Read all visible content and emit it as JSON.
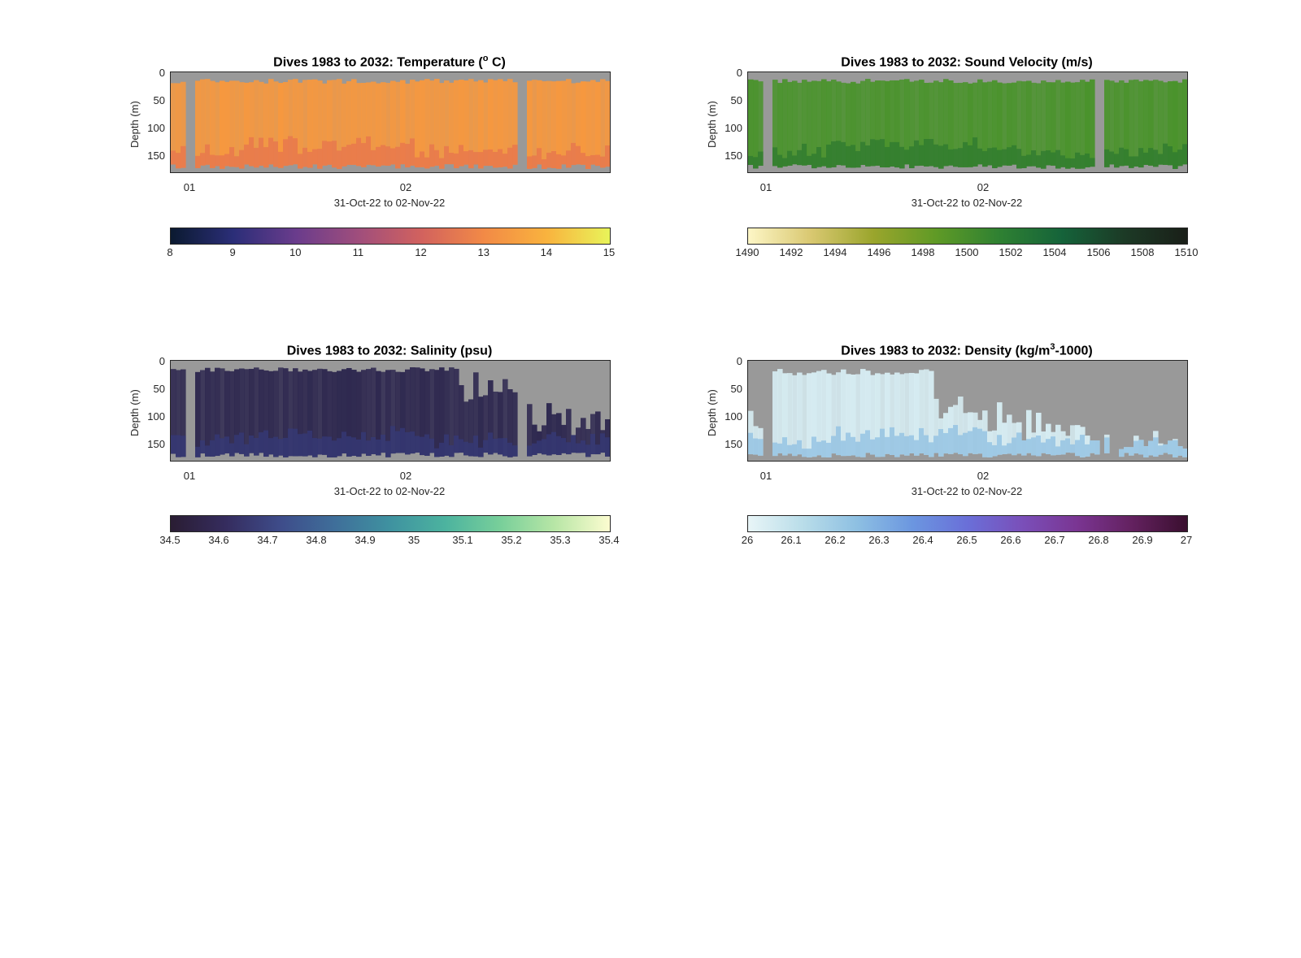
{
  "panels": [
    {
      "title_prefix": "Dives 1983 to 2032: Temperature (",
      "title_sup": "o",
      "title_suffix": " C)",
      "ylabel": "Depth (m)",
      "xlabel": "31-Oct-22 to 02-Nov-22",
      "yticks": [
        "0",
        "50",
        "100",
        "150"
      ],
      "xticks": [
        "01",
        "02"
      ],
      "cbar_ticks": [
        "8",
        "9",
        "10",
        "11",
        "12",
        "13",
        "14",
        "15"
      ],
      "colormap": [
        "#0b1a30",
        "#2b2e78",
        "#6a3c8c",
        "#a04e7c",
        "#d2625e",
        "#f28a46",
        "#f9b33e",
        "#e8f45a"
      ],
      "fill": "#f6983f",
      "deep_fill": "#e7744e"
    },
    {
      "title_prefix": "Dives 1983 to 2032: Sound Velocity (m/s)",
      "title_sup": "",
      "title_suffix": "",
      "ylabel": "Depth (m)",
      "xlabel": "31-Oct-22 to 02-Nov-22",
      "yticks": [
        "0",
        "50",
        "100",
        "150"
      ],
      "xticks": [
        "01",
        "02"
      ],
      "cbar_ticks": [
        "1490",
        "1492",
        "1494",
        "1496",
        "1498",
        "1500",
        "1502",
        "1504",
        "1506",
        "1508",
        "1510"
      ],
      "colormap": [
        "#fdf6c6",
        "#d9c871",
        "#9aa52c",
        "#5f9a26",
        "#2f8132",
        "#15633a",
        "#1c3a26",
        "#1a1f18"
      ],
      "fill": "#4a932c",
      "deep_fill": "#2e7a2f"
    },
    {
      "title_prefix": "Dives 1983 to 2032: Salinity (psu)",
      "title_sup": "",
      "title_suffix": "",
      "ylabel": "Depth (m)",
      "xlabel": "31-Oct-22 to 02-Nov-22",
      "yticks": [
        "0",
        "50",
        "100",
        "150"
      ],
      "xticks": [
        "01",
        "02"
      ],
      "cbar_ticks": [
        "34.5",
        "34.6",
        "34.7",
        "34.8",
        "34.9",
        "35",
        "35.1",
        "35.2",
        "35.3",
        "35.4"
      ],
      "colormap": [
        "#2a1d33",
        "#352c5e",
        "#3e4c8a",
        "#3f6f9a",
        "#3f92a0",
        "#4cb39f",
        "#78cf9a",
        "#b8e6a6",
        "#fcfcd0"
      ],
      "fill": "#2f2950",
      "deep_fill": "#363a78"
    },
    {
      "title_prefix": "Dives 1983 to 2032: Density (kg/m",
      "title_sup": "3",
      "title_suffix": "-1000)",
      "ylabel": "Depth (m)",
      "xlabel": "31-Oct-22 to 02-Nov-22",
      "yticks": [
        "0",
        "50",
        "100",
        "150"
      ],
      "xticks": [
        "01",
        "02"
      ],
      "cbar_ticks": [
        "26",
        "26.1",
        "26.2",
        "26.3",
        "26.4",
        "26.5",
        "26.6",
        "26.7",
        "26.8",
        "26.9",
        "27"
      ],
      "colormap": [
        "#e8f5f7",
        "#b9dde9",
        "#8dbfe2",
        "#6b96e0",
        "#6a6fd8",
        "#7a4fb9",
        "#7a3592",
        "#63215f",
        "#3a0f2f"
      ],
      "fill": "#d6ecf2",
      "deep_fill": "#8dbfe2"
    }
  ]
}
